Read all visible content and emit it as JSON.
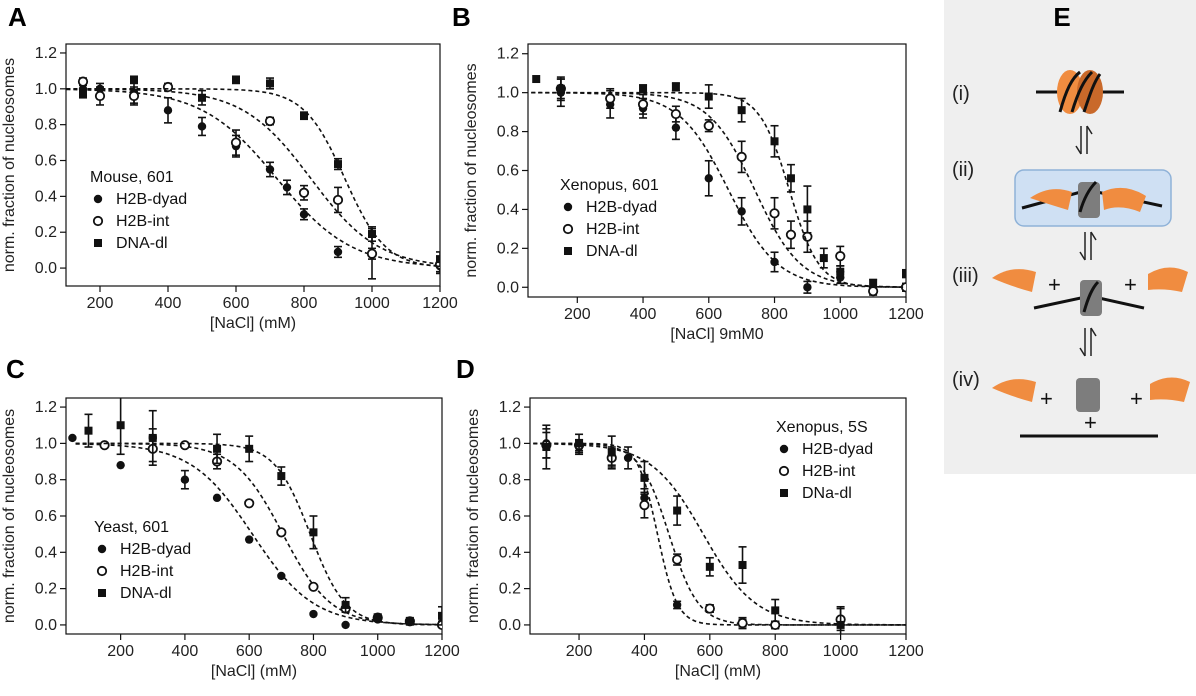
{
  "figure": {
    "colors": {
      "ink": "#111111",
      "schemeBackground": "#efefef",
      "histoneOrange": "#f08c40",
      "histoneShade": "#c9692a",
      "tetramerGray": "#7d7d7d",
      "intermediateBox": "#cfe0f3",
      "intermediateBorder": "#8fb2d8"
    },
    "scheme": {
      "letter": "E",
      "steps": [
        {
          "label": "(i)"
        },
        {
          "label": "(ii)"
        },
        {
          "label": "(iii)"
        },
        {
          "label": "(iv)"
        }
      ],
      "plus": "+",
      "equilibrium_icon": "equilibrium-arrows-icon"
    }
  },
  "chart_data": [
    {
      "panel": "A",
      "type": "scatter",
      "xlabel": "[NaCl] (mM)",
      "ylabel": "norm. fraction of nucleosomes",
      "xlim": [
        100,
        1200
      ],
      "ylim": [
        -0.1,
        1.25
      ],
      "xticks": [
        200,
        400,
        600,
        800,
        1000,
        1200
      ],
      "yticks": [
        0.0,
        0.2,
        0.4,
        0.6,
        0.8,
        1.0,
        1.2
      ],
      "xtick_labels": [
        "200",
        "400",
        "600",
        "800",
        "1000",
        "1200"
      ],
      "ytick_labels": [
        "0.0",
        "0.2",
        "0.4",
        "0.6",
        "0.8",
        "1.0",
        "1.2"
      ],
      "legend": {
        "title": "Mouse, 601",
        "position": "lower-left"
      },
      "series": [
        {
          "name": "H2B-dyad",
          "marker": "filled-circle",
          "x": [
            150,
            200,
            300,
            400,
            500,
            600,
            700,
            750,
            800,
            900,
            1000,
            1200
          ],
          "y": [
            1.0,
            1.0,
            0.98,
            0.88,
            0.79,
            0.68,
            0.55,
            0.45,
            0.3,
            0.09,
            0.08,
            0.01
          ],
          "err": [
            0.03,
            0.03,
            0.06,
            0.07,
            0.05,
            0.06,
            0.04,
            0.04,
            0.03,
            0.03,
            0.03,
            0.04
          ],
          "fit": {
            "midpoint": 720,
            "width": 110
          }
        },
        {
          "name": "H2B-int",
          "marker": "open-circle",
          "x": [
            150,
            200,
            300,
            400,
            600,
            700,
            800,
            900,
            1000,
            1200
          ],
          "y": [
            1.04,
            0.96,
            0.96,
            1.01,
            0.7,
            0.82,
            0.42,
            0.38,
            0.08,
            0.02
          ],
          "err": [
            0.02,
            0.05,
            0.05,
            0.02,
            0.07,
            0.02,
            0.04,
            0.07,
            0.14,
            0.04
          ],
          "fit": {
            "midpoint": 820,
            "width": 100
          }
        },
        {
          "name": "DNA-dl",
          "marker": "filled-square",
          "x": [
            150,
            300,
            500,
            600,
            700,
            800,
            900,
            1000,
            1200
          ],
          "y": [
            0.97,
            1.05,
            0.95,
            1.05,
            1.03,
            0.85,
            0.58,
            0.19,
            0.05
          ],
          "err": [
            0.02,
            0.02,
            0.04,
            0.02,
            0.03,
            0.02,
            0.03,
            0.04,
            0.04
          ],
          "fit": {
            "midpoint": 920,
            "width": 60
          }
        }
      ]
    },
    {
      "panel": "B",
      "type": "scatter",
      "xlabel": "[NaCl] 9mM0",
      "ylabel": "norm. fraction of nucleosomes",
      "xlim": [
        50,
        1200
      ],
      "ylim": [
        -0.05,
        1.25
      ],
      "xticks": [
        200,
        400,
        600,
        800,
        1000,
        1200
      ],
      "yticks": [
        0.0,
        0.2,
        0.4,
        0.6,
        0.8,
        1.0,
        1.2
      ],
      "xtick_labels": [
        "200",
        "400",
        "600",
        "800",
        "1000",
        "1200"
      ],
      "ytick_labels": [
        "0.0",
        "0.2",
        "0.4",
        "0.6",
        "0.8",
        "1.0",
        "1.2"
      ],
      "legend": {
        "title": "Xenopus, 601",
        "position": "lower-left"
      },
      "series": [
        {
          "name": "H2B-dyad",
          "marker": "filled-circle",
          "x": [
            150,
            300,
            400,
            500,
            600,
            700,
            800,
            900,
            1000
          ],
          "y": [
            1.0,
            0.94,
            0.92,
            0.82,
            0.56,
            0.39,
            0.13,
            0.0,
            0.05
          ],
          "err": [
            0.07,
            0.07,
            0.05,
            0.06,
            0.09,
            0.07,
            0.05,
            0.03,
            0.03
          ],
          "fit": {
            "midpoint": 660,
            "width": 75
          }
        },
        {
          "name": "H2B-int",
          "marker": "open-circle",
          "x": [
            150,
            300,
            400,
            500,
            600,
            700,
            800,
            850,
            900,
            1000,
            1100,
            1200
          ],
          "y": [
            1.02,
            0.97,
            0.94,
            0.89,
            0.83,
            0.67,
            0.38,
            0.27,
            0.26,
            0.16,
            -0.02,
            0.0
          ],
          "err": [
            0.05,
            0.05,
            0.05,
            0.04,
            0.03,
            0.08,
            0.08,
            0.07,
            0.08,
            0.05,
            0.02,
            0.02
          ],
          "fit": {
            "midpoint": 740,
            "width": 70
          }
        },
        {
          "name": "DNA-dl",
          "marker": "filled-square",
          "x": [
            75,
            150,
            400,
            500,
            600,
            700,
            800,
            850,
            900,
            950,
            1000,
            1100,
            1200
          ],
          "y": [
            1.07,
            1.02,
            1.02,
            1.03,
            0.98,
            0.91,
            0.75,
            0.56,
            0.4,
            0.15,
            0.08,
            0.02,
            0.07
          ],
          "err": [
            0.0,
            0.06,
            0.02,
            0.02,
            0.06,
            0.06,
            0.08,
            0.07,
            0.12,
            0.05,
            0.03,
            0.02,
            0.02
          ],
          "fit": {
            "midpoint": 845,
            "width": 45
          }
        }
      ]
    },
    {
      "panel": "C",
      "type": "scatter",
      "xlabel": "[NaCl] (mM)",
      "ylabel": "norm. fraction of nucleosomes",
      "xlim": [
        30,
        1200
      ],
      "ylim": [
        -0.05,
        1.25
      ],
      "xticks": [
        200,
        400,
        600,
        800,
        1000,
        1200
      ],
      "yticks": [
        0.0,
        0.2,
        0.4,
        0.6,
        0.8,
        1.0,
        1.2
      ],
      "xtick_labels": [
        "200",
        "400",
        "600",
        "800",
        "1000",
        "1200"
      ],
      "ytick_labels": [
        "0.0",
        "0.2",
        "0.4",
        "0.6",
        "0.8",
        "1.0",
        "1.2"
      ],
      "legend": {
        "title": "Yeast, 601",
        "position": "lower-left"
      },
      "series": [
        {
          "name": "H2B-dyad",
          "marker": "filled-circle",
          "x": [
            50,
            200,
            300,
            400,
            500,
            600,
            700,
            800,
            900,
            1000,
            1100,
            1200
          ],
          "y": [
            1.03,
            0.88,
            1.03,
            0.8,
            0.7,
            0.47,
            0.27,
            0.06,
            0.0,
            0.03,
            0.02,
            0.01
          ],
          "err": [
            0.0,
            0.0,
            0.05,
            0.05,
            0.0,
            0.0,
            0.0,
            0.0,
            0.0,
            0.0,
            0.0,
            0.01
          ],
          "fit": {
            "midpoint": 610,
            "width": 95
          }
        },
        {
          "name": "H2B-int",
          "marker": "open-circle",
          "x": [
            150,
            300,
            400,
            500,
            600,
            700,
            800,
            900,
            1000,
            1100,
            1200
          ],
          "y": [
            0.99,
            0.97,
            0.99,
            0.9,
            0.67,
            0.51,
            0.21,
            0.09,
            0.04,
            0.02,
            0.0
          ],
          "err": [
            0.0,
            0.07,
            0.0,
            0.04,
            0.0,
            0.0,
            0.0,
            0.0,
            0.0,
            0.0,
            0.0
          ],
          "fit": {
            "midpoint": 705,
            "width": 75
          }
        },
        {
          "name": "DNA-dl",
          "marker": "filled-square",
          "x": [
            100,
            200,
            300,
            500,
            600,
            700,
            800,
            900,
            1000,
            1100,
            1200
          ],
          "y": [
            1.07,
            1.1,
            1.03,
            0.97,
            0.97,
            0.82,
            0.51,
            0.11,
            0.04,
            0.02,
            0.05
          ],
          "err": [
            0.09,
            0.16,
            0.15,
            0.08,
            0.07,
            0.05,
            0.09,
            0.04,
            0.02,
            0.02,
            0.05
          ],
          "fit": {
            "midpoint": 790,
            "width": 55
          }
        }
      ]
    },
    {
      "panel": "D",
      "type": "scatter",
      "xlabel": "[NaCl] (mM)",
      "ylabel": "norm. fraction of nucleosomes",
      "xlim": [
        50,
        1200
      ],
      "ylim": [
        -0.05,
        1.25
      ],
      "xticks": [
        200,
        400,
        600,
        800,
        1000,
        1200
      ],
      "yticks": [
        0.0,
        0.2,
        0.4,
        0.6,
        0.8,
        1.0,
        1.2
      ],
      "xtick_labels": [
        "200",
        "400",
        "600",
        "800",
        "1000",
        "1200"
      ],
      "ytick_labels": [
        "0.0",
        "0.2",
        "0.4",
        "0.6",
        "0.8",
        "1.0",
        "1.2"
      ],
      "legend": {
        "title": "Xenopus, 5S",
        "position": "upper-right"
      },
      "series": [
        {
          "name": "H2B-dyad",
          "marker": "filled-circle",
          "x": [
            100,
            200,
            300,
            350,
            400,
            500,
            600,
            700,
            800,
            1000
          ],
          "y": [
            1.0,
            0.98,
            0.93,
            0.92,
            0.7,
            0.11,
            0.09,
            0.01,
            0.0,
            0.02
          ],
          "err": [
            0.08,
            0.04,
            0.05,
            0.06,
            0.05,
            0.02,
            0.02,
            0.02,
            0.02,
            0.02
          ],
          "fit": {
            "midpoint": 440,
            "width": 30
          }
        },
        {
          "name": "H2B-int",
          "marker": "open-circle",
          "x": [
            100,
            200,
            300,
            400,
            500,
            600,
            700,
            800,
            1000
          ],
          "y": [
            0.99,
            0.99,
            0.92,
            0.66,
            0.36,
            0.09,
            0.01,
            0.0,
            0.03
          ],
          "err": [
            0.07,
            0.03,
            0.05,
            0.07,
            0.03,
            0.02,
            0.03,
            0.02,
            0.06
          ],
          "fit": {
            "midpoint": 475,
            "width": 45
          }
        },
        {
          "name": "DNa-dl",
          "marker": "filled-square",
          "x": [
            100,
            200,
            300,
            400,
            500,
            600,
            700,
            800,
            1000
          ],
          "y": [
            0.98,
            1.0,
            0.95,
            0.81,
            0.63,
            0.32,
            0.33,
            0.08,
            0.0
          ],
          "err": [
            0.12,
            0.05,
            0.09,
            0.09,
            0.08,
            0.05,
            0.1,
            0.06,
            0.1
          ],
          "fit": {
            "midpoint": 580,
            "width": 80
          }
        }
      ]
    }
  ]
}
